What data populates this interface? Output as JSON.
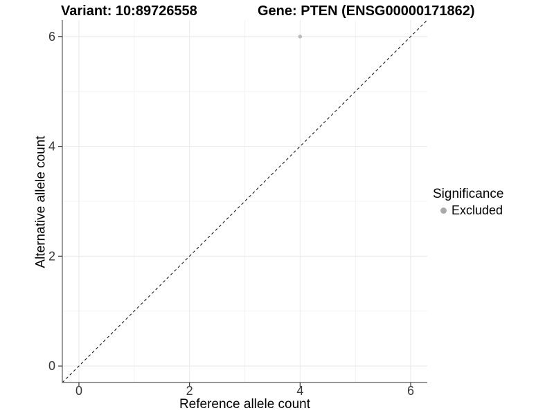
{
  "chart_data": {
    "type": "scatter",
    "title_left": "Variant: 10:89726558",
    "title_right": "Gene: PTEN (ENSG00000171862)",
    "xlabel": "Reference allele count",
    "ylabel": "Alternative allele count",
    "xlim": [
      -0.3,
      6.3
    ],
    "ylim": [
      -0.3,
      6.3
    ],
    "x_major_ticks": [
      0,
      2,
      4,
      6
    ],
    "y_major_ticks": [
      0,
      2,
      4,
      6
    ],
    "x_minor_ticks": [
      1,
      3,
      5
    ],
    "y_minor_ticks": [
      1,
      3,
      5
    ],
    "grid": "major and minor gridlines on, white panel background",
    "series": [
      {
        "name": "Excluded",
        "marker": "circle",
        "color": "#bcbcbc",
        "points": [
          {
            "x": 4,
            "y": 6
          }
        ]
      }
    ],
    "identity_line": {
      "equation": "y = x",
      "span": [
        [
          -0.3,
          -0.3
        ],
        [
          6.3,
          6.3
        ]
      ],
      "style": "dashed",
      "color": "#000000"
    },
    "legend": {
      "title": "Significance",
      "position": "right",
      "entries": [
        {
          "label": "Excluded",
          "marker": "circle",
          "color": "#aaaaaa"
        }
      ]
    },
    "colors": {
      "background": "#ffffff",
      "grid_major": "#e8e8e8",
      "grid_minor": "#f3f3f3",
      "axis_line": "#595959",
      "tick_mark": "#333333",
      "tick_label": "#383838",
      "point": "#bcbcbc",
      "legend_marker": "#aaaaaa",
      "reference_line": "#000000"
    }
  }
}
